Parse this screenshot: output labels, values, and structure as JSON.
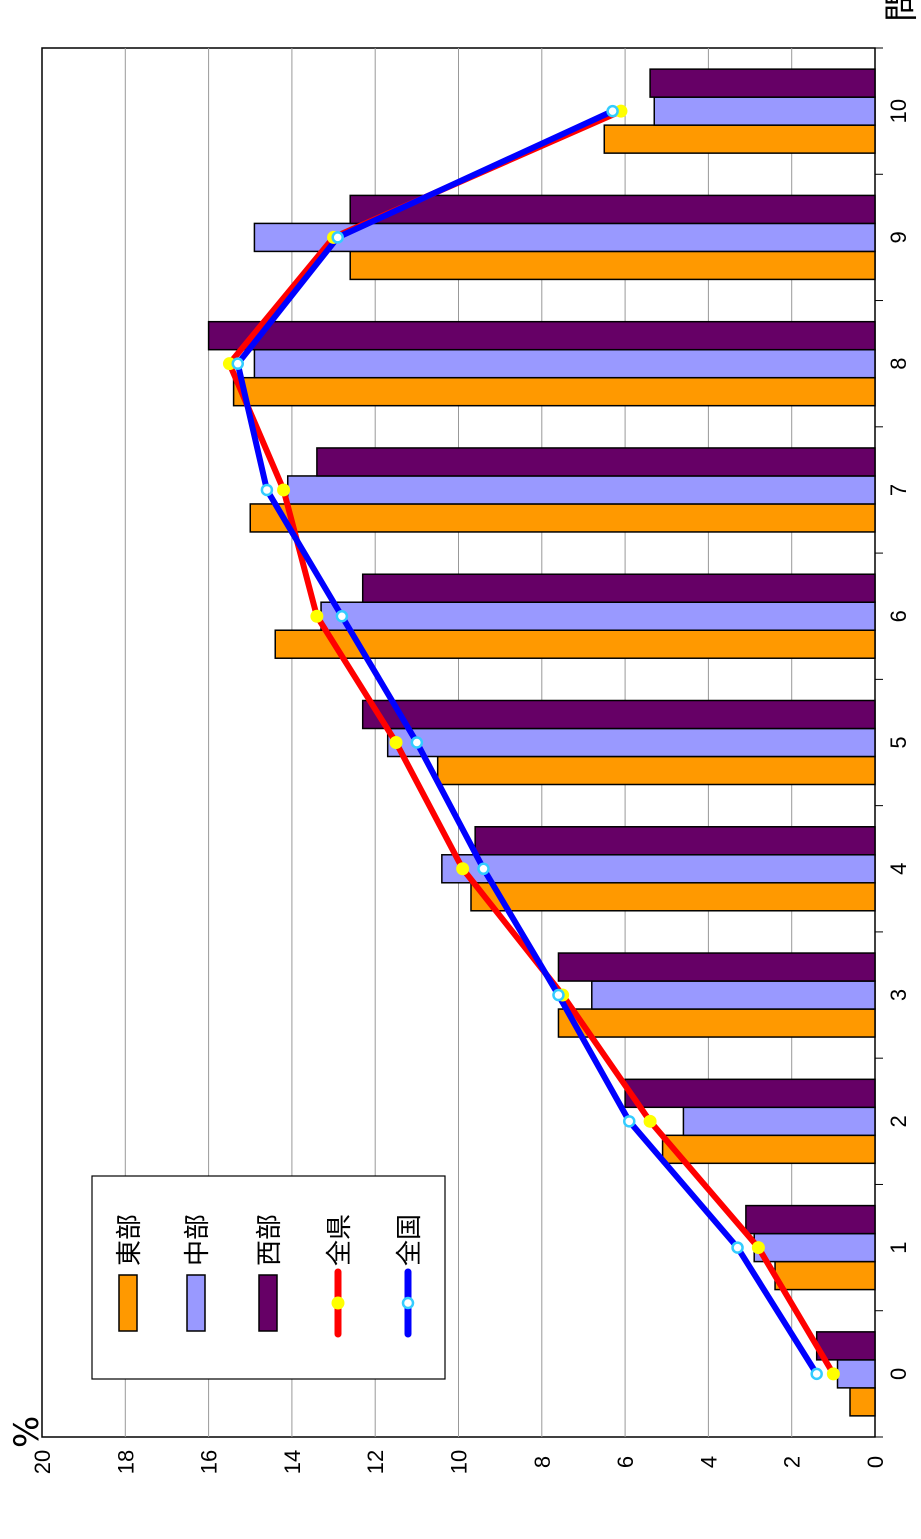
{
  "chart_data": {
    "type": "bar",
    "y_unit": "%",
    "x_unit": "問",
    "categories": [
      "0",
      "1",
      "2",
      "3",
      "4",
      "5",
      "6",
      "7",
      "8",
      "9",
      "10"
    ],
    "y_ticks": [
      "0",
      "2",
      "4",
      "6",
      "8",
      "10",
      "12",
      "14",
      "16",
      "18",
      "20"
    ],
    "ylim": [
      0,
      20
    ],
    "grid": true,
    "legend_position": "bottom-left",
    "series": [
      {
        "name": "東部",
        "kind": "bar",
        "color": "#FF9900",
        "values": [
          0.6,
          2.4,
          5.1,
          7.6,
          9.7,
          10.5,
          14.4,
          15.0,
          15.4,
          12.6,
          6.5
        ]
      },
      {
        "name": "中部",
        "kind": "bar",
        "color": "#9999FF",
        "values": [
          0.9,
          2.9,
          4.6,
          6.8,
          10.4,
          11.7,
          13.3,
          14.1,
          14.9,
          14.9,
          5.3
        ]
      },
      {
        "name": "西部",
        "kind": "bar",
        "color": "#660066",
        "values": [
          1.4,
          3.1,
          6.0,
          7.6,
          9.6,
          12.3,
          12.3,
          13.4,
          16.0,
          12.6,
          5.4
        ]
      },
      {
        "name": "全県",
        "kind": "line",
        "color": "#FF0000",
        "marker_color": "#FFFF00",
        "values": [
          1.0,
          2.8,
          5.4,
          7.5,
          9.9,
          11.5,
          13.4,
          14.2,
          15.5,
          13.0,
          6.1
        ]
      },
      {
        "name": "全国",
        "kind": "line",
        "color": "#0000FF",
        "marker_color": "#33CCFF",
        "values": [
          1.4,
          3.3,
          5.9,
          7.6,
          9.4,
          11.0,
          12.8,
          14.6,
          15.3,
          12.9,
          6.3
        ]
      }
    ]
  }
}
